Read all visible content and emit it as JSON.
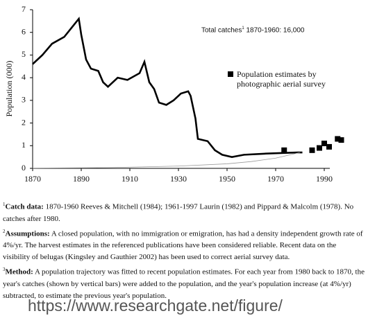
{
  "chart_data": {
    "type": "line",
    "ylabel": "Population (000)",
    "annotation": {
      "text": "Total catches",
      "sup": "1",
      "rest": " 1870-1960: 16,000"
    },
    "xlim": [
      1870,
      2000
    ],
    "xticks": [
      1870,
      1890,
      1910,
      1930,
      1950,
      1970,
      1990
    ],
    "ylim": [
      0,
      7
    ],
    "yticks": [
      0,
      1,
      2,
      3,
      4,
      5,
      6,
      7
    ],
    "series": [
      {
        "color": "#000000",
        "style": "line",
        "x": [
          1870,
          1871,
          1874,
          1878,
          1883,
          1886,
          1889,
          1890,
          1892,
          1894,
          1897,
          1899,
          1901,
          1905,
          1909,
          1914,
          1916,
          1918,
          1920,
          1922,
          1925,
          1928,
          1931,
          1934,
          1935,
          1937,
          1938,
          1942,
          1945,
          1948,
          1952,
          1957,
          1966,
          1979,
          1981
        ],
        "values": [
          4.6,
          4.7,
          5.0,
          5.5,
          5.8,
          6.2,
          6.6,
          5.9,
          4.8,
          4.4,
          4.3,
          3.8,
          3.6,
          4.0,
          3.9,
          4.2,
          4.7,
          3.8,
          3.5,
          2.9,
          2.8,
          3.0,
          3.3,
          3.4,
          3.2,
          2.2,
          1.3,
          1.2,
          0.8,
          0.6,
          0.5,
          0.6,
          0.65,
          0.7,
          0.7
        ]
      },
      {
        "name": "Population estimates by photographic aerial survey",
        "color": "#000000",
        "style": "marker",
        "x": [
          1973.5,
          1985,
          1988,
          1990,
          1992,
          1995.5,
          1997
        ],
        "values": [
          0.8,
          0.8,
          0.9,
          1.1,
          0.95,
          1.3,
          1.25
        ]
      },
      {
        "color": "#999999",
        "style": "thin",
        "x": [
          1870,
          1900,
          1930,
          1950,
          1960,
          1970,
          1980
        ],
        "values": [
          0.01,
          0.03,
          0.1,
          0.2,
          0.3,
          0.45,
          0.7
        ]
      }
    ]
  },
  "footnotes": [
    {
      "marker": "1",
      "label": "Catch data:",
      "text": " 1870-1960 Reeves & Mitchell (1984); 1961-1997 Laurin (1982) and Pippard & Malcolm (1978). No catches after 1980."
    },
    {
      "marker": "2",
      "label": "Assumptions:",
      "text": " A closed population, with no immigration or emigration, has had a density independent growth rate of 4%/yr. The harvest estimates in the referenced publications have been considered reliable. Recent data on the visibility of belugas (Kingsley and Gauthier 2002) has been used to correct aerial survey data."
    },
    {
      "marker": "3",
      "label": "Method:",
      "text": " A population trajectory was fitted to recent population estimates. For each year from 1980 back to 1870, the year's catches (shown by vertical bars) were added to the population, and the year's population increase (at 4%/yr) subtracted, to estimate the previous year's population."
    }
  ],
  "watermark": "https://www.researchgate.net/figure/"
}
